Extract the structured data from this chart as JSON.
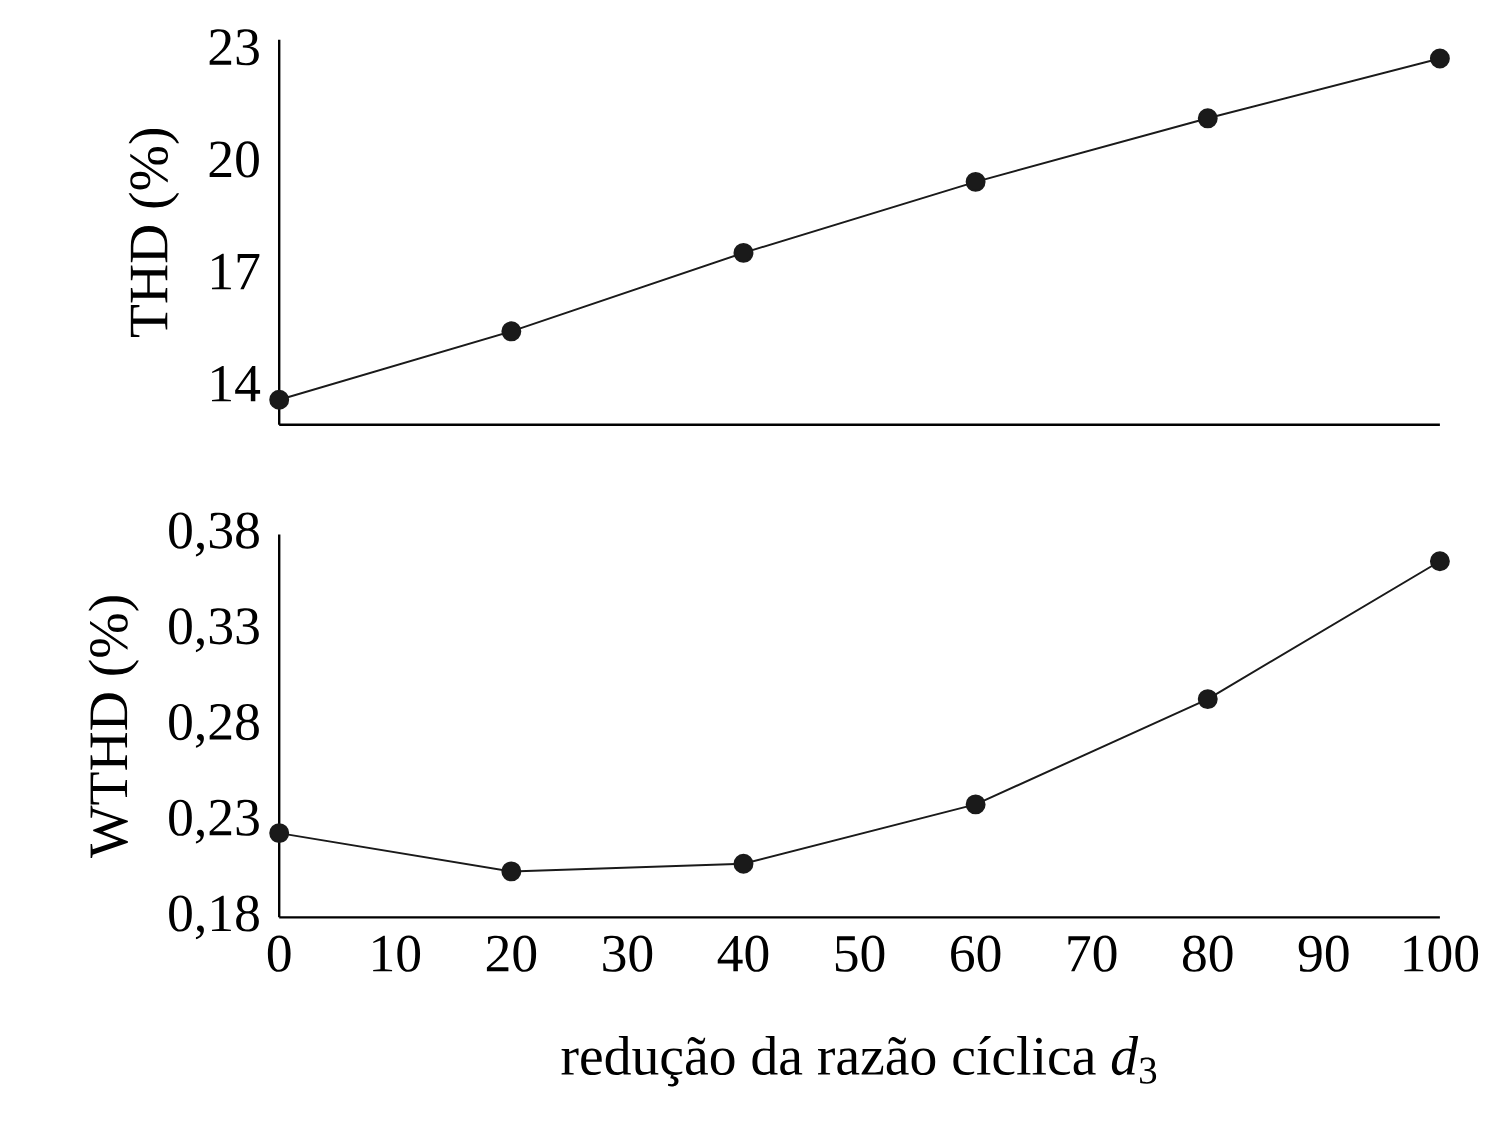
{
  "chart_data": [
    {
      "type": "line",
      "ylabel": "THD (%)",
      "x": [
        0,
        20,
        40,
        60,
        80,
        100
      ],
      "xlim": [
        0,
        100
      ],
      "ylim": [
        12.9,
        23.2
      ],
      "yticks": [
        14,
        17,
        20,
        23
      ],
      "tick_labels": "y",
      "marker": "circle",
      "color": "#1a1a1a",
      "values": [
        13.57,
        15.4,
        17.5,
        19.4,
        21.1,
        22.7
      ]
    },
    {
      "type": "line",
      "ylabel": "WTHD (%)",
      "xlabel": "redução da razão cíclica *d*$_{3}$",
      "x": [
        0,
        20,
        40,
        60,
        80,
        100
      ],
      "xlim": [
        0,
        100
      ],
      "xticks": [
        0,
        10,
        20,
        30,
        40,
        50,
        60,
        70,
        80,
        90,
        100
      ],
      "ylim": [
        0.18,
        0.38
      ],
      "yticks": [
        {
          "value": 0.18,
          "label": "0,18"
        },
        {
          "value": 0.23,
          "label": "0,23"
        },
        {
          "value": 0.28,
          "label": "0,28"
        },
        {
          "value": 0.33,
          "label": "0,33"
        },
        {
          "value": 0.38,
          "label": "0,38"
        }
      ],
      "marker": "circle",
      "color": "#1a1a1a",
      "values": [
        0.224,
        0.204,
        0.208,
        0.239,
        0.294,
        0.366
      ]
    }
  ]
}
